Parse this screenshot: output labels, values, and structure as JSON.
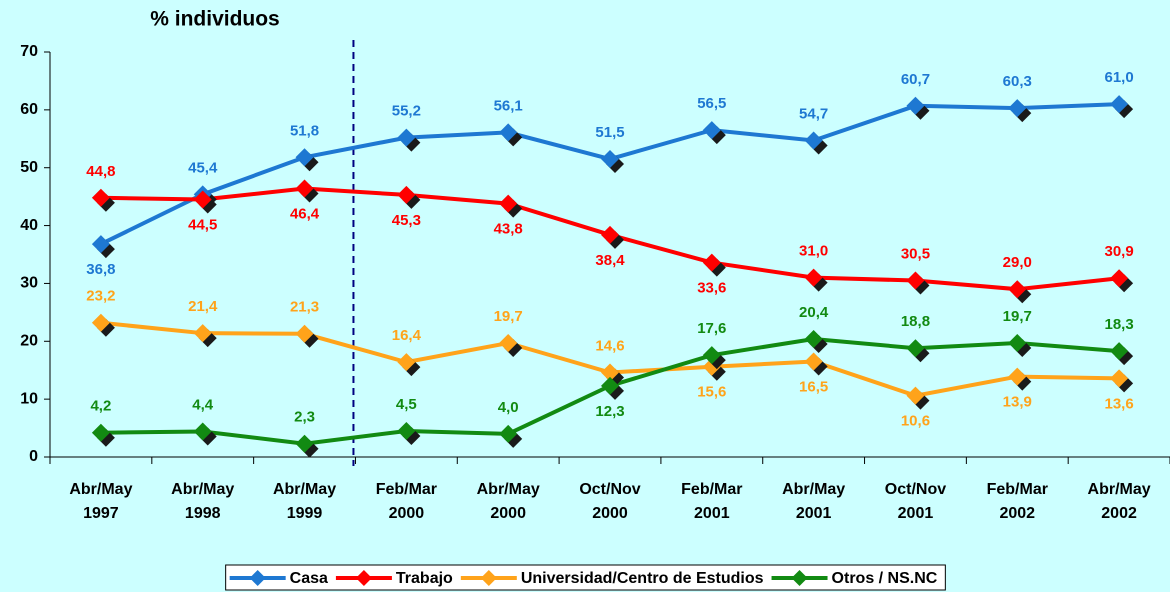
{
  "chart_data": {
    "type": "line",
    "title": "% individuos",
    "categories": [
      "Abr/May 1997",
      "Abr/May 1998",
      "Abr/May 1999",
      "Feb/Mar 2000",
      "Abr/May 2000",
      "Oct/Nov 2000",
      "Feb/Mar 2001",
      "Abr/May 2001",
      "Oct/Nov 2001",
      "Feb/Mar 2002",
      "Abr/May 2002"
    ],
    "series": [
      {
        "name": "Casa",
        "color": "#1e78d2",
        "values": [
          36.8,
          45.4,
          51.8,
          55.2,
          56.1,
          51.5,
          56.5,
          54.7,
          60.7,
          60.3,
          61.0
        ],
        "value_labels": [
          "36,8",
          "45,4",
          "51,8",
          "55,2",
          "56,1",
          "51,5",
          "56,5",
          "54,7",
          "60,7",
          "60,3",
          "61,0"
        ]
      },
      {
        "name": "Trabajo",
        "color": "#ff0000",
        "values": [
          44.8,
          44.5,
          46.4,
          45.3,
          43.8,
          38.4,
          33.6,
          31.0,
          30.5,
          29.0,
          30.9
        ],
        "value_labels": [
          "44,8",
          "44,5",
          "46,4",
          "45,3",
          "43,8",
          "38,4",
          "33,6",
          "31,0",
          "30,5",
          "29,0",
          "30,9"
        ]
      },
      {
        "name": "Universidad/Centro de Estudios",
        "color": "#ffa31a",
        "values": [
          23.2,
          21.4,
          21.3,
          16.4,
          19.7,
          14.6,
          15.6,
          16.5,
          10.6,
          13.9,
          13.6
        ],
        "value_labels": [
          "23,2",
          "21,4",
          "21,3",
          "16,4",
          "19,7",
          "14,6",
          "15,6",
          "16,5",
          "10,6",
          "13,9",
          "13,6"
        ]
      },
      {
        "name": "Otros / NS.NC",
        "color": "#128a12",
        "values": [
          4.2,
          4.4,
          2.3,
          4.5,
          4.0,
          12.3,
          17.6,
          20.4,
          18.8,
          19.7,
          18.3
        ],
        "value_labels": [
          "4,2",
          "4,4",
          "2,3",
          "4,5",
          "4,0",
          "12,3",
          "17,6",
          "20,4",
          "18,8",
          "19,7",
          "18,3"
        ]
      }
    ],
    "ylim": [
      0,
      70
    ],
    "yticks": [
      0,
      10,
      20,
      30,
      40,
      50,
      60,
      70
    ],
    "legend": "bottom"
  }
}
